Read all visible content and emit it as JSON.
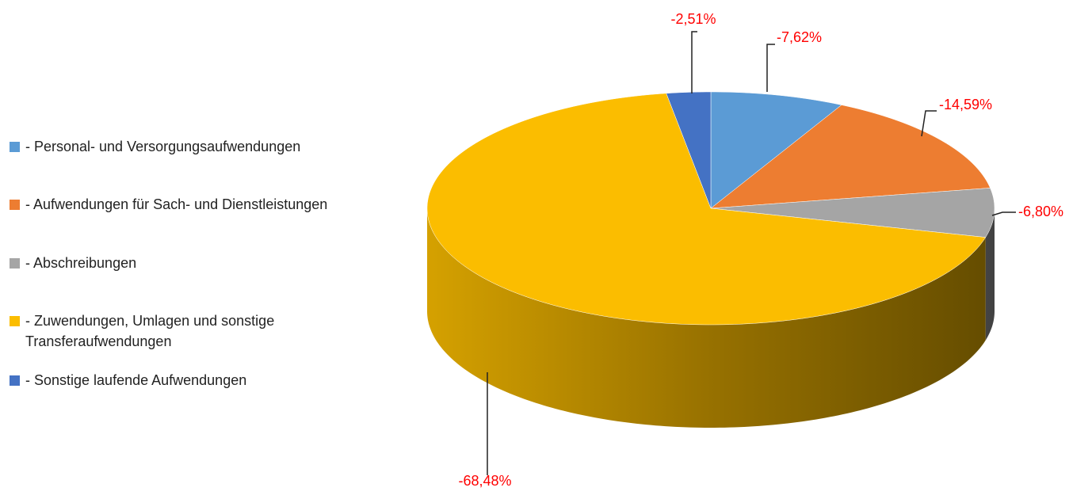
{
  "chart_data": {
    "type": "pie3d",
    "categories": [
      "- Personal- und Versorgungsaufwendungen",
      "- Aufwendungen für Sach- und Dienstleistungen",
      "- Abschreibungen",
      "- Zuwendungen, Umlagen und sonstige Transferaufwendungen",
      "- Sonstige laufende Aufwendungen"
    ],
    "values": [
      -7.62,
      -14.59,
      -6.8,
      -68.48,
      -2.51
    ],
    "value_labels": [
      "-7,62%",
      "-14,59%",
      "-6,80%",
      "-68,48%",
      "-2,51%"
    ],
    "colors": [
      "#5b9bd5",
      "#ed7d31",
      "#a5a5a5",
      "#fbbd00",
      "#4472c4"
    ],
    "label_color": "#ff0000",
    "legend": "left"
  }
}
